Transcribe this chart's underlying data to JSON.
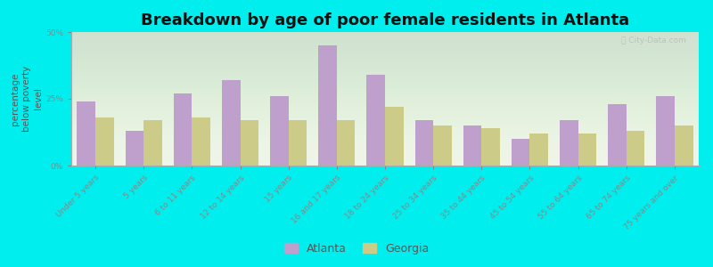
{
  "title": "Breakdown by age of poor female residents in Atlanta",
  "ylabel": "percentage\nbelow poverty\nlevel",
  "categories": [
    "Under 5 years",
    "5 years",
    "6 to 11 years",
    "12 to 14 years",
    "15 years",
    "16 and 17 years",
    "18 to 24 years",
    "25 to 34 years",
    "35 to 44 years",
    "45 to 54 years",
    "55 to 64 years",
    "65 to 74 years",
    "75 years and over"
  ],
  "atlanta_values": [
    24,
    13,
    27,
    32,
    26,
    45,
    34,
    17,
    15,
    10,
    17,
    23,
    26
  ],
  "georgia_values": [
    18,
    17,
    18,
    17,
    17,
    17,
    22,
    15,
    14,
    12,
    12,
    13,
    15
  ],
  "atlanta_color": "#bf9fcc",
  "georgia_color": "#cccc88",
  "background_color": "#00eeee",
  "plot_bg_color": "#eef5e8",
  "ylim": [
    0,
    50
  ],
  "yticks": [
    0,
    25,
    50
  ],
  "ytick_labels": [
    "0%",
    "25%",
    "50%"
  ],
  "bar_width": 0.38,
  "title_fontsize": 13,
  "axis_label_fontsize": 7.5,
  "tick_fontsize": 6.5,
  "legend_labels": [
    "Atlanta",
    "Georgia"
  ],
  "watermark": "ⓘ City-Data.com"
}
